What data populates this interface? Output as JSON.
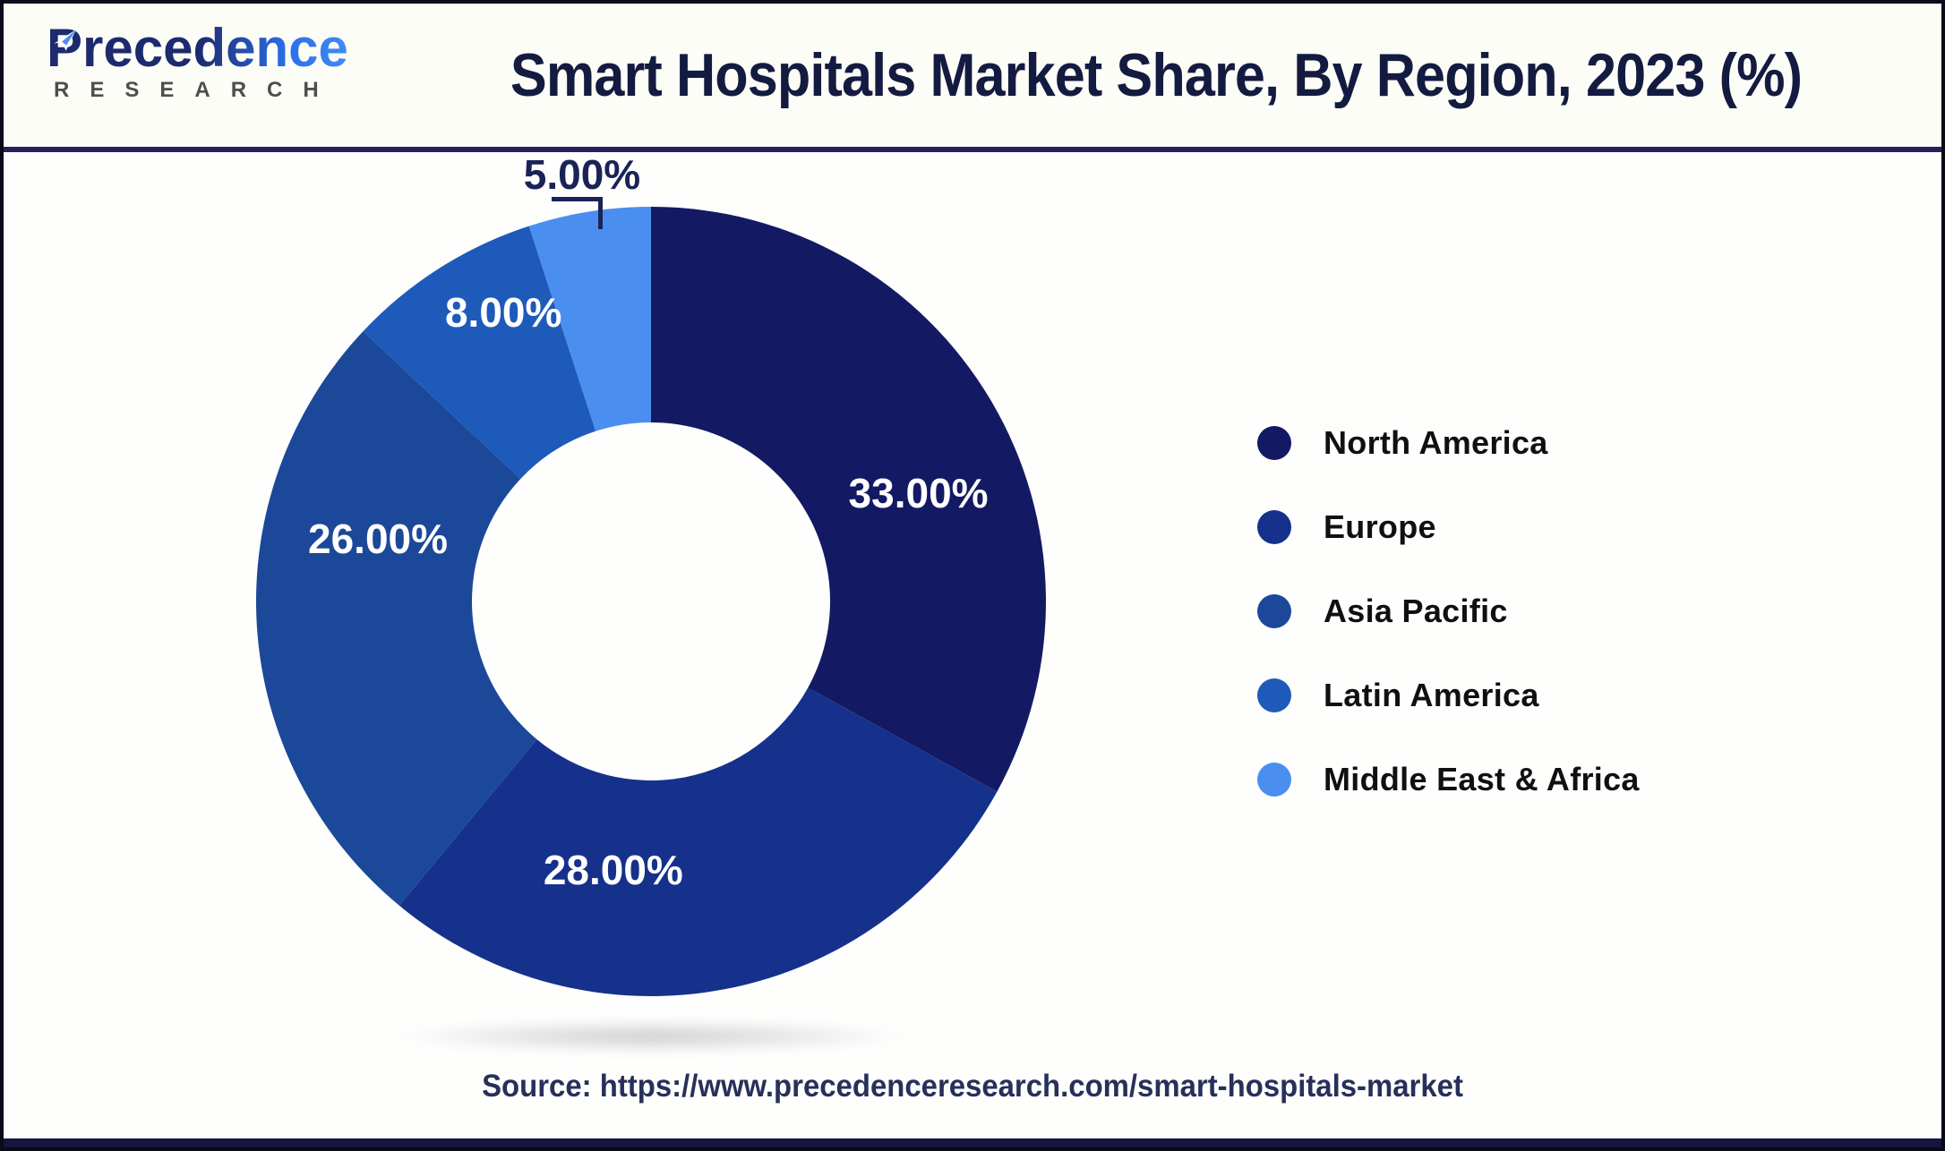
{
  "header": {
    "logo": {
      "brand": "Precedence",
      "subtitle": "RESEARCH"
    },
    "title": "Smart Hospitals Market Share, By Region, 2023 (%)"
  },
  "chart_data": {
    "type": "pie",
    "subtype": "donut",
    "title": "Smart Hospitals Market Share, By Region, 2023 (%)",
    "categories": [
      "North America",
      "Europe",
      "Asia Pacific",
      "Latin America",
      "Middle East & Africa"
    ],
    "values": [
      33,
      28,
      26,
      8,
      5
    ],
    "labels_display": [
      "33.00%",
      "28.00%",
      "26.00%",
      "8.00%",
      "5.00%"
    ],
    "colors": [
      "#131A63",
      "#16318B",
      "#1C4899",
      "#1E5AB9",
      "#4A8FF0"
    ],
    "legend_position": "right",
    "label_color_on_slice": "#FFFFFF",
    "external_label_color": "#1A2356",
    "start_angle_deg_cw_from_top": 0
  },
  "footer": {
    "source_text": "Source: https://www.precedenceresearch.com/smart-hospitals-market"
  },
  "theme": {
    "background": "#FEFEFD",
    "header_background": "#FDFDF8",
    "header_separator": "#262159",
    "frame_border": "#0A0A18",
    "bottom_bar": "#15153E",
    "title_color": "#141B40",
    "brand_navy": "#1D2A6E",
    "brand_blue": "#3F8BF5",
    "legend_text_color": "#101013"
  }
}
